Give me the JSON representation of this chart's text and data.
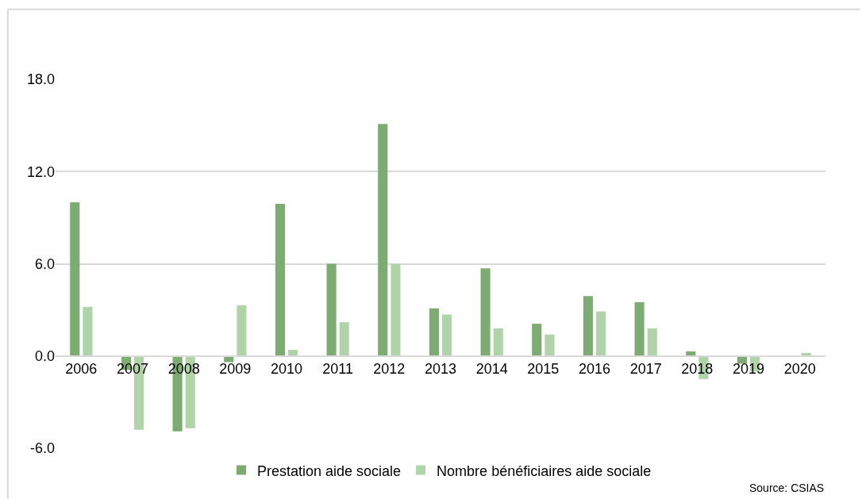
{
  "chart_data": {
    "type": "bar",
    "categories": [
      "2006",
      "2007",
      "2008",
      "2009",
      "2010",
      "2011",
      "2012",
      "2013",
      "2014",
      "2015",
      "2016",
      "2017",
      "2018",
      "2019",
      "2020"
    ],
    "series": [
      {
        "name": "Prestation aide sociale",
        "color": "#7dab72",
        "values": [
          10.0,
          -0.9,
          -4.9,
          -0.4,
          9.9,
          6.0,
          15.1,
          3.1,
          5.7,
          2.1,
          3.9,
          3.5,
          0.3,
          -0.5,
          null
        ]
      },
      {
        "name": "Nombre bénéficiaires aide sociale",
        "color": "#b1d3a9",
        "values": [
          3.2,
          -4.8,
          -4.7,
          3.3,
          0.4,
          2.2,
          6.0,
          2.7,
          1.8,
          1.4,
          2.9,
          1.8,
          -1.5,
          -1.0,
          0.2
        ]
      }
    ],
    "ylim": [
      -6,
      18
    ],
    "yticks": [
      {
        "value": -6,
        "label": "-6.0"
      },
      {
        "value": 0,
        "label": "0.0"
      },
      {
        "value": 6,
        "label": "6.0"
      },
      {
        "value": 12,
        "label": "12.0"
      },
      {
        "value": 18,
        "label": "18.0"
      }
    ],
    "grid": "y",
    "legend": "bottom",
    "annotations": [
      "Source: CSIAS"
    ]
  }
}
